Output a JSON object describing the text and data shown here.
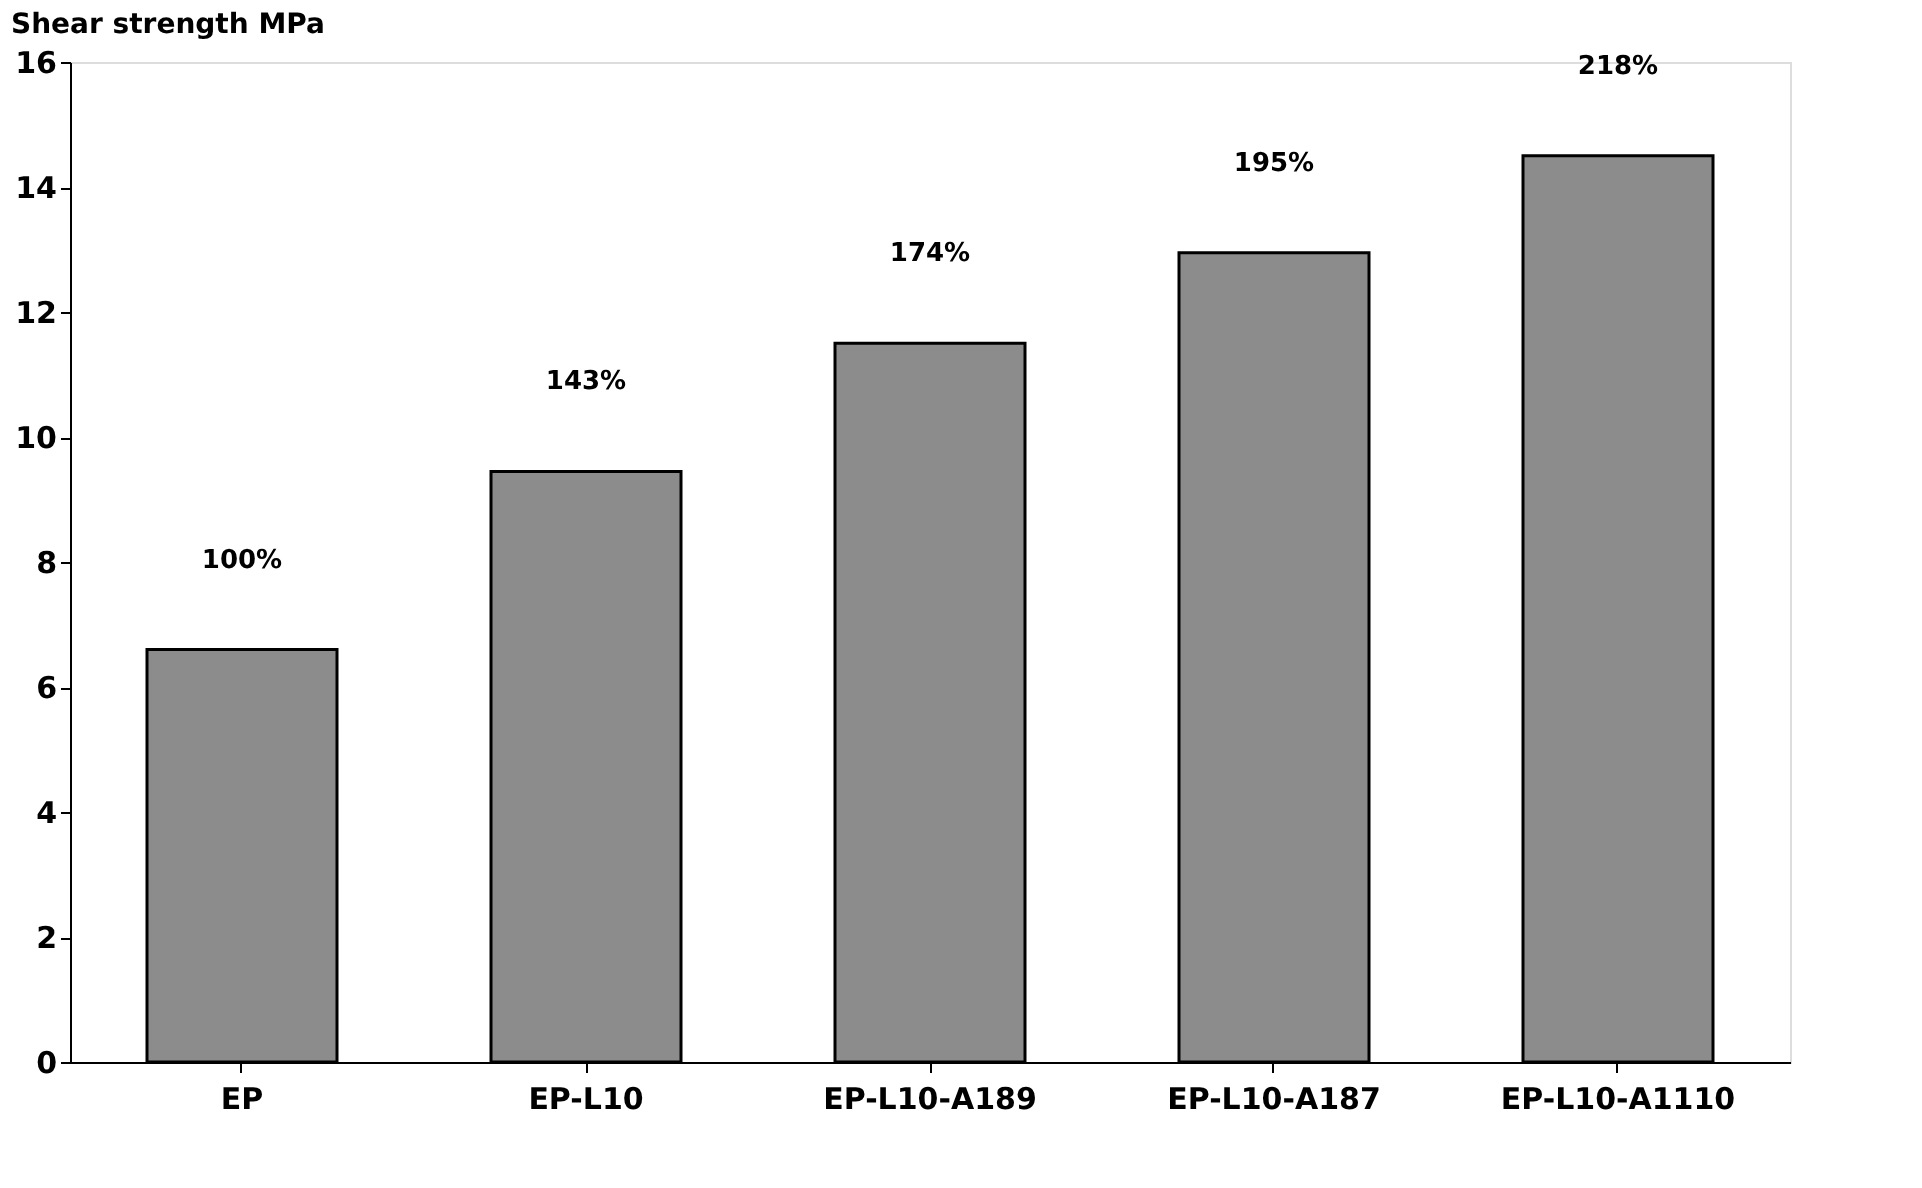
{
  "chart_data": {
    "type": "bar",
    "ylabel": "Shear strength  MPa",
    "categories": [
      "EP",
      "EP-L10",
      "EP-L10-A189",
      "EP-L10-A187",
      "EP-L10-A1110"
    ],
    "values": [
      6.6,
      9.45,
      11.5,
      12.95,
      14.5
    ],
    "annotations": [
      "100%",
      "143%",
      "174%",
      "195%",
      "218%"
    ],
    "color": "#8c8c8c",
    "ylim": [
      0,
      16
    ],
    "yticks": [
      0,
      2,
      4,
      6,
      8,
      10,
      12,
      14,
      16
    ],
    "grid": false
  }
}
